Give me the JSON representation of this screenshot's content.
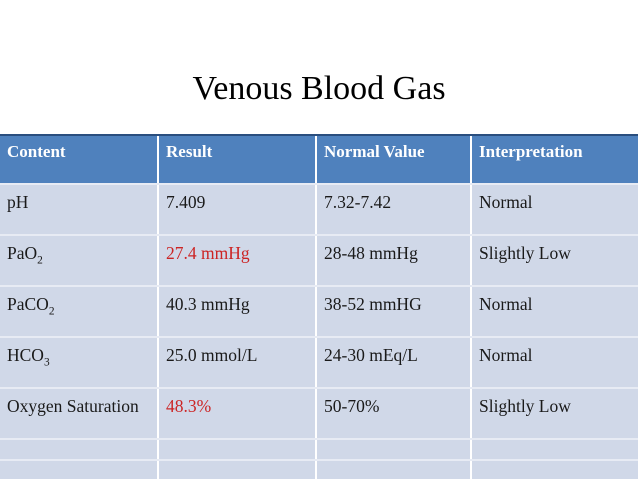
{
  "slide": {
    "title": "Venous Blood Gas"
  },
  "colors": {
    "header_bg": "#4F81BD",
    "header_text": "#FFFFFF",
    "top_border": "#2A4E7E",
    "row_bg": "#D0D8E8",
    "row_separator": "#E7EBF4",
    "column_separator": "#FFFFFF",
    "text": "#1A1A1A",
    "abnormal_result": "#CC2424"
  },
  "table": {
    "columns": [
      "Content",
      "Result",
      "Normal Value",
      "Interpretation"
    ],
    "rows": [
      {
        "content": "pH",
        "content_sub": "",
        "result": "7.409",
        "normal_value": "7.32-7.42",
        "interpretation": "Normal"
      },
      {
        "content": "PaO",
        "content_sub": "2",
        "result": "27.4 mmHg",
        "result_color": "#CC2424",
        "normal_value": "28-48 mmHg",
        "interpretation": "Slightly Low"
      },
      {
        "content": "PaCO",
        "content_sub": "2",
        "result": "40.3 mmHg",
        "normal_value": "38-52 mmHG",
        "interpretation": "Normal"
      },
      {
        "content": "HCO",
        "content_sub": "3",
        "result": "25.0 mmol/L",
        "normal_value": "24-30 mEq/L",
        "interpretation": "Normal"
      },
      {
        "content": "Oxygen Saturation",
        "content_sub": "",
        "result": "48.3%",
        "result_color": "#CC2424",
        "normal_value": "50-70%",
        "interpretation": "Slightly Low"
      }
    ]
  }
}
